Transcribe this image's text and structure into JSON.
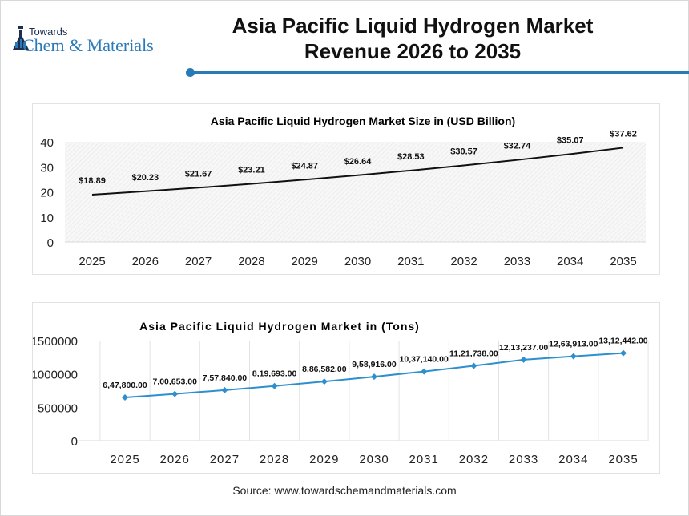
{
  "header": {
    "logo_line1": "Towards",
    "logo_line2": "Chem & Materials",
    "title_line1": "Asia Pacific Liquid Hydrogen Market",
    "title_line2": "Revenue 2026 to 2035",
    "accent_color": "#2a7ab8"
  },
  "chart_data": [
    {
      "type": "line",
      "title": "Asia Pacific Liquid Hydrogen Market Size in (USD Billion)",
      "categories": [
        "2025",
        "2026",
        "2027",
        "2028",
        "2029",
        "2030",
        "2031",
        "2032",
        "2033",
        "2034",
        "2035"
      ],
      "values": [
        18.89,
        20.23,
        21.67,
        23.21,
        24.87,
        26.64,
        28.53,
        30.57,
        32.74,
        35.07,
        37.62
      ],
      "data_labels": [
        "$18.89",
        "$20.23",
        "$21.67",
        "$23.21",
        "$24.87",
        "$26.64",
        "$28.53",
        "$30.57",
        "$32.74",
        "$35.07",
        "$37.62"
      ],
      "yticks": [
        "0",
        "10",
        "20",
        "30",
        "40"
      ],
      "ylim": [
        0,
        40
      ],
      "line_color": "#111111",
      "grid": false
    },
    {
      "type": "line",
      "title": "Asia Pacific Liquid Hydrogen Market in (Tons)",
      "categories": [
        "2025",
        "2026",
        "2027",
        "2028",
        "2029",
        "2030",
        "2031",
        "2032",
        "2033",
        "2034",
        "2035"
      ],
      "values": [
        647800,
        700653,
        757840,
        819693,
        886582,
        958916,
        1037140,
        1121738,
        1213237,
        1263913,
        1312442
      ],
      "data_labels": [
        "6,47,800.00",
        "7,00,653.00",
        "7,57,840.00",
        "8,19,693.00",
        "8,86,582.00",
        "9,58,916.00",
        "10,37,140.00",
        "11,21,738.00",
        "12,13,237.00",
        "12,63,913.00",
        "13,12,442.00"
      ],
      "yticks": [
        "0",
        "500000",
        "1000000",
        "1500000"
      ],
      "ylim": [
        0,
        1500000
      ],
      "line_color": "#2e8fcf",
      "marker": "diamond",
      "grid": "vertical"
    }
  ],
  "footer": {
    "source": "Source: www.towardschemandmaterials.com"
  }
}
